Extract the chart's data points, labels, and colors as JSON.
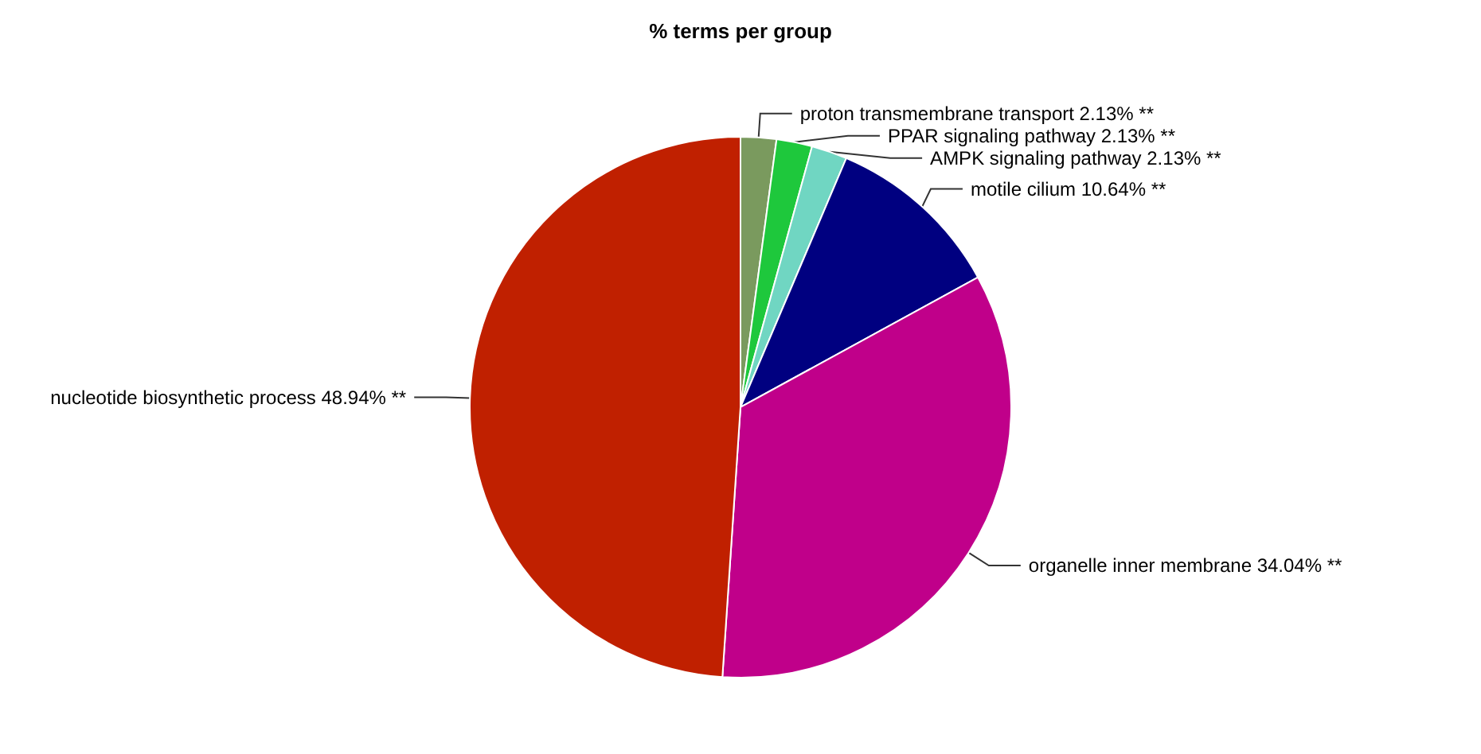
{
  "chart_data": {
    "type": "pie",
    "title": "% terms per group",
    "categories": [
      "proton transmembrane transport",
      "PPAR signaling pathway",
      "AMPK signaling pathway",
      "motile cilium",
      "organelle inner membrane",
      "nucleotide biosynthetic process"
    ],
    "values": [
      2.13,
      2.13,
      2.13,
      10.64,
      34.04,
      48.94
    ],
    "value_labels": [
      "2.13% **",
      "2.13% **",
      "2.13% **",
      "10.64% **",
      "34.04% **",
      "48.94% **"
    ],
    "colors": [
      "#7a9a5e",
      "#1ec83c",
      "#70d6c2",
      "#000080",
      "#c0008a",
      "#c02000"
    ],
    "legend": false
  }
}
